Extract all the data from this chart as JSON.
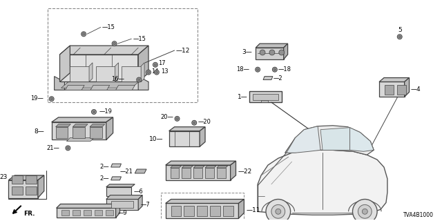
{
  "background_color": "#ffffff",
  "diagram_id": "TVA4B1000",
  "fig_width": 6.4,
  "fig_height": 3.2,
  "dpi": 100,
  "lc": "#404040",
  "tc": "#000000",
  "dc": "#888888",
  "fc_light": "#e8e8e8",
  "fc_mid": "#cccccc",
  "fc_dark": "#aaaaaa"
}
